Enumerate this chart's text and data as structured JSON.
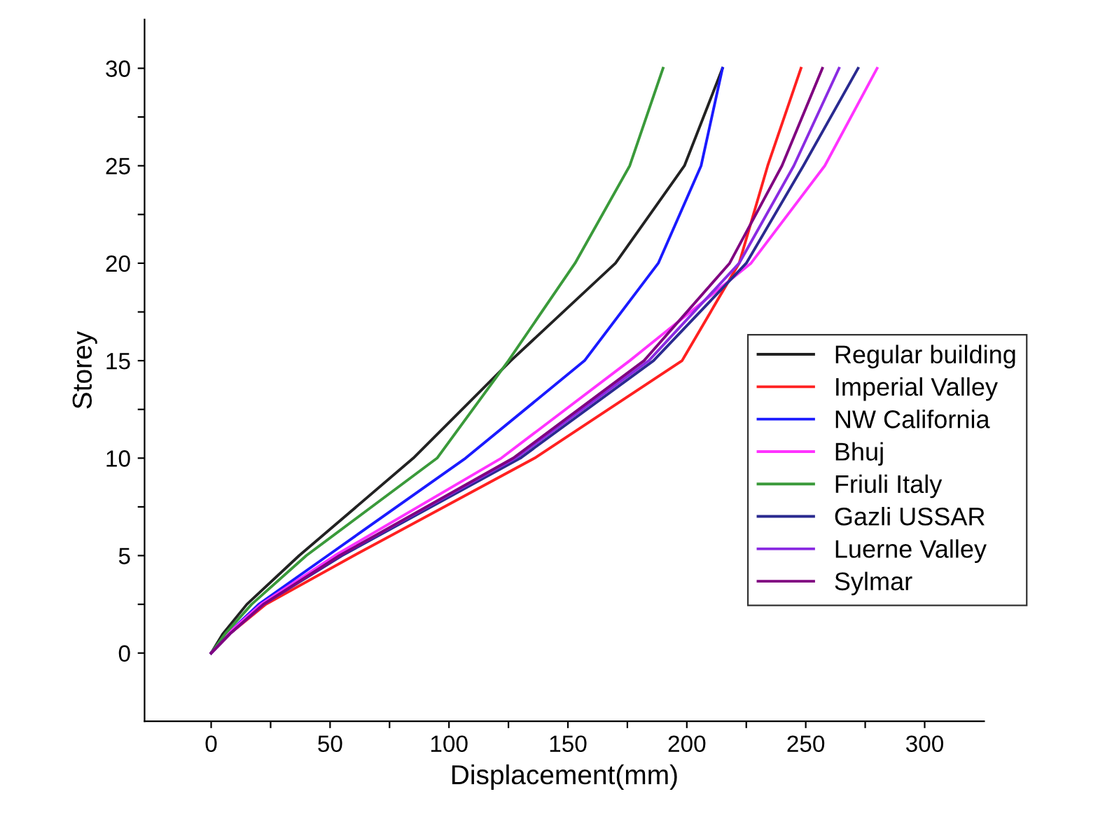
{
  "chart_data": {
    "type": "line",
    "xlabel": "Displacement(mm)",
    "ylabel": "Storey",
    "xlim": [
      -28,
      325
    ],
    "ylim": [
      -3.5,
      32.5
    ],
    "xticks": [
      0,
      {
        "value": 25,
        "label": null
      },
      50,
      {
        "value": 75,
        "label": null
      },
      100,
      {
        "value": 125,
        "label": null
      },
      150,
      {
        "value": 175,
        "label": null
      },
      200,
      {
        "value": 225,
        "label": null
      },
      250,
      {
        "value": 275,
        "label": null
      },
      300
    ],
    "yticks": [
      0,
      {
        "value": 2.5,
        "label": null
      },
      5,
      {
        "value": 7.5,
        "label": null
      },
      10,
      {
        "value": 12.5,
        "label": null
      },
      15,
      {
        "value": 17.5,
        "label": null
      },
      20,
      {
        "value": 22.5,
        "label": null
      },
      25,
      {
        "value": 27.5,
        "label": null
      },
      30
    ],
    "grid": false,
    "legend": "right",
    "marker": "none",
    "line_style": "solid",
    "series": [
      {
        "name": "Regular building",
        "color": "#222222",
        "x": [
          0,
          5,
          15,
          37,
          85,
          126,
          170,
          199,
          215
        ],
        "values": [
          0,
          1,
          2.5,
          5,
          10,
          15,
          20,
          25,
          30
        ]
      },
      {
        "name": "Imperial Valley",
        "color": "#ff2020",
        "x": [
          0,
          8,
          23,
          60,
          136,
          198,
          222,
          234,
          248
        ],
        "values": [
          0,
          1,
          2.5,
          5,
          10,
          15,
          20,
          25,
          30
        ]
      },
      {
        "name": "NW California",
        "color": "#1a1aff",
        "x": [
          0,
          7,
          20,
          49,
          107,
          157,
          188,
          206,
          215
        ],
        "values": [
          0,
          1,
          2.5,
          5,
          10,
          15,
          20,
          25,
          30
        ]
      },
      {
        "name": "Bhuj",
        "color": "#ff33ff",
        "x": [
          0,
          7,
          21,
          52,
          122,
          176,
          227,
          258,
          280
        ],
        "values": [
          0,
          1,
          2.5,
          5,
          10,
          15,
          20,
          25,
          30
        ]
      },
      {
        "name": "Friuli Italy",
        "color": "#3a9a3a",
        "x": [
          0,
          6,
          17,
          40,
          95,
          125,
          153,
          176,
          190
        ],
        "values": [
          0,
          1,
          2.5,
          5,
          10,
          15,
          20,
          25,
          30
        ]
      },
      {
        "name": "Gazli USSAR",
        "color": "#2a2a90",
        "x": [
          0,
          8,
          22,
          55,
          130,
          186,
          225,
          249,
          272
        ],
        "values": [
          0,
          1,
          2.5,
          5,
          10,
          15,
          20,
          25,
          30
        ]
      },
      {
        "name": "Luerne Valley",
        "color": "#8a2be2",
        "x": [
          0,
          8,
          22,
          54,
          128,
          184,
          222,
          245,
          264
        ],
        "values": [
          0,
          1,
          2.5,
          5,
          10,
          15,
          20,
          25,
          30
        ]
      },
      {
        "name": "Sylmar",
        "color": "#800080",
        "x": [
          0,
          8,
          22,
          54,
          127,
          182,
          218,
          240,
          257
        ],
        "values": [
          0,
          1,
          2.5,
          5,
          10,
          15,
          20,
          25,
          30
        ]
      }
    ]
  }
}
